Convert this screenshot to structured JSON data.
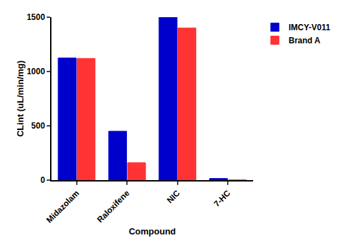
{
  "chart_data": {
    "type": "bar",
    "x_label": "Compound",
    "y_label": "CLint (uL/min/mg)",
    "categories": [
      "Midazolam",
      "Raloxifene",
      "NIC",
      "7-HC"
    ],
    "series": [
      {
        "name": "IMCY-V011",
        "color": "#0000cc",
        "values": [
          1125,
          450,
          1500,
          15
        ]
      },
      {
        "name": "Brand A",
        "color": "#ff3333",
        "values": [
          1120,
          160,
          1400,
          3
        ]
      }
    ],
    "ylim": [
      0,
      1500
    ],
    "yticks": [
      0,
      500,
      1000,
      1500
    ],
    "grid": false,
    "legend": "top right"
  }
}
